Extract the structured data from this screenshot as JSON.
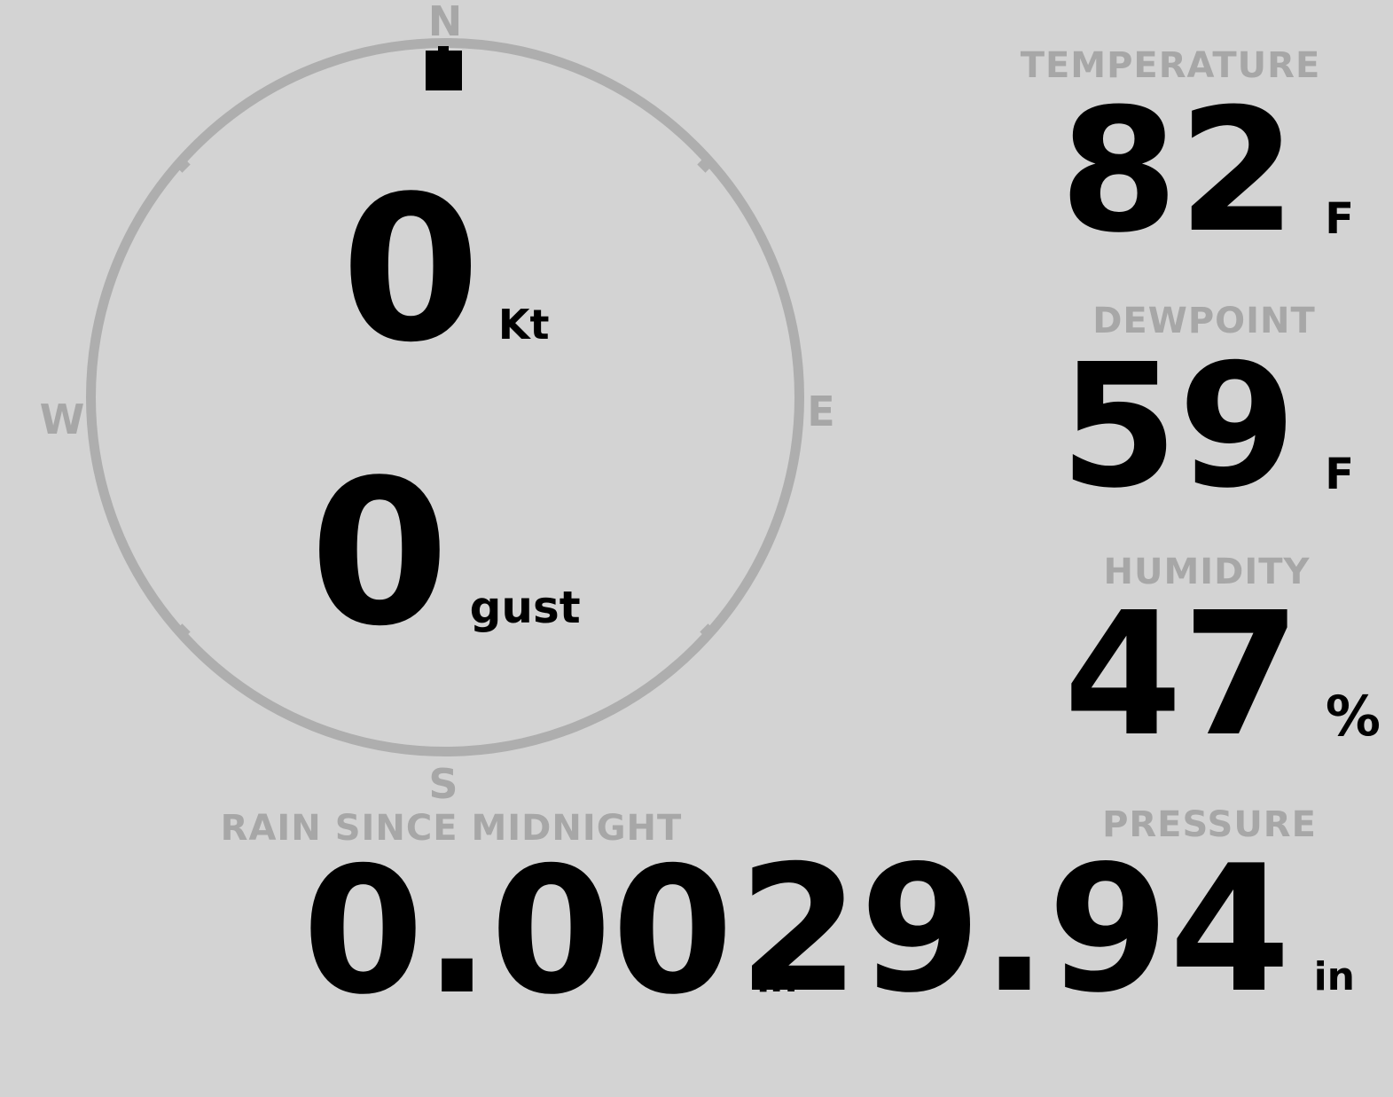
{
  "theme": {
    "background_color": "#d3d3d3",
    "label_color": "#a7a7a7",
    "ring_color": "#aeaeae",
    "value_color": "#000000",
    "marker_color": "#000000"
  },
  "compass": {
    "cardinal_n": "N",
    "cardinal_e": "E",
    "cardinal_s": "S",
    "cardinal_w": "W",
    "wind_speed_value": "0",
    "wind_speed_unit": "Kt",
    "wind_gust_value": "0",
    "wind_gust_unit": "gust",
    "direction_marker": "north-square-marker"
  },
  "metrics": {
    "temperature": {
      "label": "TEMPERATURE",
      "value": "82",
      "unit": "F"
    },
    "dewpoint": {
      "label": "DEWPOINT",
      "value": "59",
      "unit": "F"
    },
    "humidity": {
      "label": "HUMIDITY",
      "value": "47",
      "unit": "%"
    },
    "rain_since_midnight": {
      "label": "RAIN SINCE MIDNIGHT",
      "value": "0.00",
      "unit": "in"
    },
    "pressure": {
      "label": "PRESSURE",
      "value": "29.94",
      "unit": "in"
    }
  }
}
